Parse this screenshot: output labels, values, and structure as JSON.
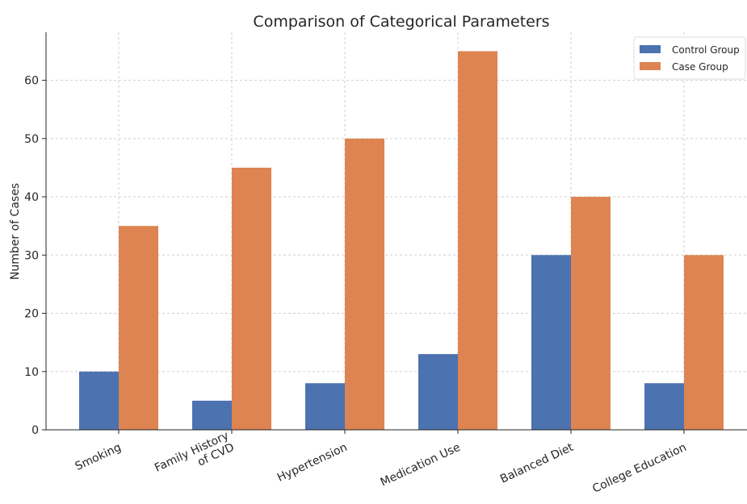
{
  "chart_data": {
    "type": "bar",
    "title": "Comparison of Categorical Parameters",
    "xlabel": "",
    "ylabel": "Number of Cases",
    "categories": [
      [
        "Smoking"
      ],
      [
        "Family History",
        "of CVD"
      ],
      [
        "Hypertension"
      ],
      [
        "Medication Use"
      ],
      [
        "Balanced Diet"
      ],
      [
        "College Education"
      ]
    ],
    "series": [
      {
        "name": "Control Group",
        "color": "#4c72b0",
        "values": [
          10,
          5,
          8,
          13,
          30,
          8
        ]
      },
      {
        "name": "Case Group",
        "color": "#dd8452",
        "values": [
          35,
          45,
          50,
          65,
          40,
          30
        ]
      }
    ],
    "yticks": [
      0,
      10,
      20,
      30,
      40,
      50,
      60
    ],
    "ylim": [
      0,
      68.25
    ],
    "grid": true,
    "legend": "top-right"
  }
}
